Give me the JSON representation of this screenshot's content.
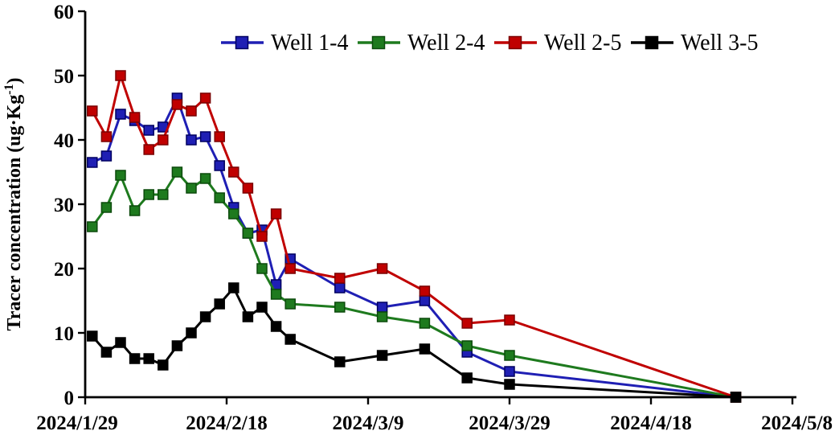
{
  "chart_data": {
    "type": "line",
    "title": "",
    "xlabel": "",
    "ylabel": "Tracer concentration (ug·Kg-1)",
    "ylabel_parts": {
      "prefix": "Tracer concentration (ug·Kg",
      "sup": "-1",
      "suffix": ")"
    },
    "ylim": [
      0,
      60
    ],
    "y_ticks": [
      0,
      10,
      20,
      30,
      40,
      50,
      60
    ],
    "x_ticks": [
      {
        "label": "2024/1/29",
        "day": 0
      },
      {
        "label": "2024/2/18",
        "day": 20
      },
      {
        "label": "2024/3/9",
        "day": 40
      },
      {
        "label": "2024/3/29",
        "day": 60
      },
      {
        "label": "2024/4/18",
        "day": 80
      },
      {
        "label": "2024/5/8",
        "day": 100
      }
    ],
    "x_axis_note": "days after 2024/1/29",
    "xlim_days": [
      0,
      100
    ],
    "x_days": [
      1,
      3,
      5,
      7,
      9,
      11,
      13,
      15,
      17,
      19,
      21,
      23,
      25,
      27,
      29,
      36,
      42,
      48,
      54,
      60,
      92
    ],
    "grid": false,
    "marker": "square",
    "legend_position": "top",
    "series": [
      {
        "name": "Well 1-4",
        "color": "#1F1FB4",
        "edge": "#000060",
        "values": [
          36.5,
          37.5,
          44,
          43,
          41.5,
          42,
          46.5,
          40,
          40.5,
          36,
          29.5,
          25.5,
          26,
          17.5,
          21.5,
          17,
          14,
          15,
          7,
          4,
          0
        ]
      },
      {
        "name": "Well 2-4",
        "color": "#1E7A1E",
        "edge": "#0C4A0C",
        "values": [
          26.5,
          29.5,
          34.5,
          29,
          31.5,
          31.5,
          35,
          32.5,
          34,
          31,
          28.5,
          25.5,
          20,
          16,
          14.5,
          14,
          12.5,
          11.5,
          8,
          6.5,
          0
        ]
      },
      {
        "name": "Well 2-5",
        "color": "#C00000",
        "edge": "#7A0000",
        "values": [
          44.5,
          40.5,
          50,
          43.5,
          38.5,
          40,
          45.5,
          44.5,
          46.5,
          40.5,
          35,
          32.5,
          25,
          28.5,
          20,
          18.5,
          20,
          16.5,
          11.5,
          12,
          0
        ]
      },
      {
        "name": "Well 3-5",
        "color": "#000000",
        "edge": "#000000",
        "values": [
          9.5,
          7,
          8.5,
          6,
          6,
          5,
          8,
          10,
          12.5,
          14.5,
          17,
          12.5,
          14,
          11,
          9,
          5.5,
          6.5,
          7.5,
          3,
          2,
          0
        ]
      }
    ]
  }
}
